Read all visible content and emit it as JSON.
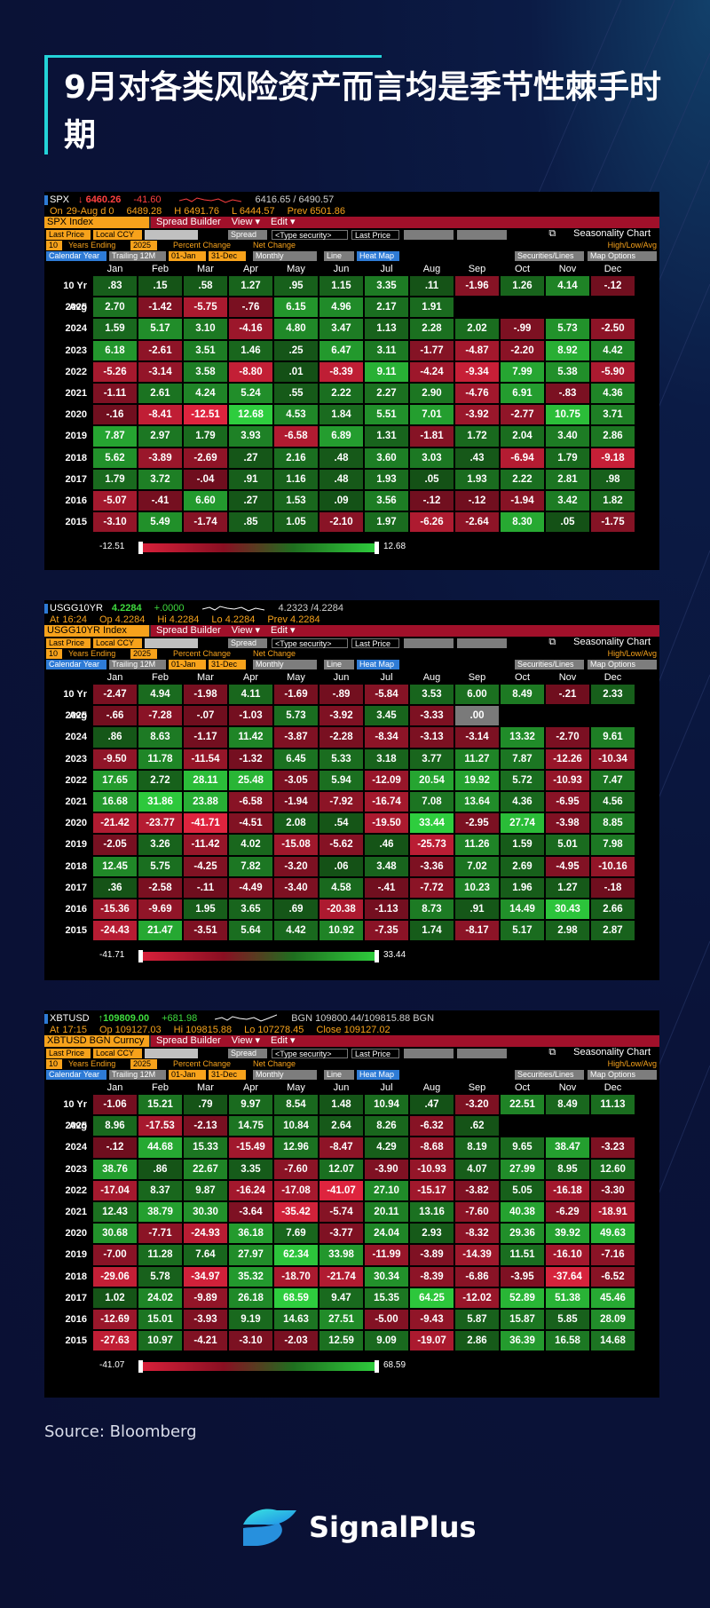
{
  "title": "9月对各类风险资产而言均是季节性棘手时期",
  "source": "Source: Bloomberg",
  "brand": "SignalPlus",
  "colors": {
    "accent": "#23d3d8",
    "bg": "#0a1339",
    "pos_strong": "#2ecb3c",
    "pos": "#1e7a1e",
    "neg": "#a1102a",
    "neg_strong": "#d8203a"
  },
  "months": [
    "Jan",
    "Feb",
    "Mar",
    "Apr",
    "May",
    "Jun",
    "Jul",
    "Aug",
    "Sep",
    "Oct",
    "Nov",
    "Dec"
  ],
  "panels": [
    {
      "ticker": "SPX",
      "line1": {
        "price": "↓ 6460.26",
        "change": "-41.60",
        "bidask": "6416.65 / 6490.57"
      },
      "line2": {
        "tag": "On",
        "date": "29-Aug d 0",
        "open": "6489.28",
        "high": "H 6491.76",
        "low": "L 6444.57",
        "prev": "Prev 6501.86"
      },
      "security": "SPX Index",
      "menu1": "Spread Builder",
      "menu2": "View ▾",
      "menu3": "Edit ▾",
      "chart_name": "Seasonality Chart",
      "ctl": {
        "price": "Last Price",
        "ccy": "Local CCY",
        "spread": "Spread",
        "type_sec": "<Type security>",
        "last": "Last Price",
        "years": "10",
        "years_lbl": "Years Ending",
        "year_end": "2025",
        "pct": "Percent Change",
        "net": "Net Change",
        "hla": "High/Low/Avg",
        "cal": "Calendar Year",
        "trail": "Trailing 12M",
        "from": "01-Jan",
        "to": "31-Dec",
        "freq": "Monthly",
        "line": "Line",
        "heat": "Heat Map",
        "sec_lines": "Securities/Lines",
        "map_opt": "Map Options"
      },
      "legend_min": "-12.51",
      "legend_max": "12.68",
      "chart_data": {
        "type": "heatmap",
        "x": [
          "Jan",
          "Feb",
          "Mar",
          "Apr",
          "May",
          "Jun",
          "Jul",
          "Aug",
          "Sep",
          "Oct",
          "Nov",
          "Dec"
        ],
        "y": [
          "10 Yr Avg",
          "2025",
          "2024",
          "2023",
          "2022",
          "2021",
          "2020",
          "2019",
          "2018",
          "2017",
          "2016",
          "2015"
        ],
        "values": [
          [
            ".83",
            ".15",
            ".58",
            "1.27",
            ".95",
            "1.15",
            "3.35",
            ".11",
            "-1.96",
            "1.26",
            "4.14",
            "-.12"
          ],
          [
            "2.70",
            "-1.42",
            "-5.75",
            "-.76",
            "6.15",
            "4.96",
            "2.17",
            "1.91",
            "",
            "",
            "",
            ""
          ],
          [
            "1.59",
            "5.17",
            "3.10",
            "-4.16",
            "4.80",
            "3.47",
            "1.13",
            "2.28",
            "2.02",
            "-.99",
            "5.73",
            "-2.50"
          ],
          [
            "6.18",
            "-2.61",
            "3.51",
            "1.46",
            ".25",
            "6.47",
            "3.11",
            "-1.77",
            "-4.87",
            "-2.20",
            "8.92",
            "4.42"
          ],
          [
            "-5.26",
            "-3.14",
            "3.58",
            "-8.80",
            ".01",
            "-8.39",
            "9.11",
            "-4.24",
            "-9.34",
            "7.99",
            "5.38",
            "-5.90"
          ],
          [
            "-1.11",
            "2.61",
            "4.24",
            "5.24",
            ".55",
            "2.22",
            "2.27",
            "2.90",
            "-4.76",
            "6.91",
            "-.83",
            "4.36"
          ],
          [
            "-.16",
            "-8.41",
            "-12.51",
            "12.68",
            "4.53",
            "1.84",
            "5.51",
            "7.01",
            "-3.92",
            "-2.77",
            "10.75",
            "3.71"
          ],
          [
            "7.87",
            "2.97",
            "1.79",
            "3.93",
            "-6.58",
            "6.89",
            "1.31",
            "-1.81",
            "1.72",
            "2.04",
            "3.40",
            "2.86"
          ],
          [
            "5.62",
            "-3.89",
            "-2.69",
            ".27",
            "2.16",
            ".48",
            "3.60",
            "3.03",
            ".43",
            "-6.94",
            "1.79",
            "-9.18"
          ],
          [
            "1.79",
            "3.72",
            "-.04",
            ".91",
            "1.16",
            ".48",
            "1.93",
            ".05",
            "1.93",
            "2.22",
            "2.81",
            ".98"
          ],
          [
            "-5.07",
            "-.41",
            "6.60",
            ".27",
            "1.53",
            ".09",
            "3.56",
            "-.12",
            "-.12",
            "-1.94",
            "3.42",
            "1.82"
          ],
          [
            "-3.10",
            "5.49",
            "-1.74",
            ".85",
            "1.05",
            "-2.10",
            "1.97",
            "-6.26",
            "-2.64",
            "8.30",
            ".05",
            "-1.75"
          ]
        ],
        "range": [
          -12.51,
          12.68
        ]
      }
    },
    {
      "ticker": "USGG10YR",
      "line1": {
        "price": "4.2284",
        "change": "+.0000",
        "bidask": "4.2323 /4.2284"
      },
      "line2": {
        "tag": "At",
        "date": "16:24",
        "open": "Op 4.2284",
        "high": "Hi 4.2284",
        "low": "Lo 4.2284",
        "prev": "Prev 4.2284"
      },
      "security": "USGG10YR Index",
      "menu1": "Spread Builder",
      "menu2": "View ▾",
      "menu3": "Edit ▾",
      "chart_name": "Seasonality Chart",
      "ctl": {
        "price": "Last Price",
        "ccy": "Local CCY",
        "spread": "Spread",
        "type_sec": "<Type security>",
        "last": "Last Price",
        "years": "10",
        "years_lbl": "Years Ending",
        "year_end": "2025",
        "pct": "Percent Change",
        "net": "Net Change",
        "hla": "High/Low/Avg",
        "cal": "Calendar Year",
        "trail": "Trailing 12M",
        "from": "01-Jan",
        "to": "31-Dec",
        "freq": "Monthly",
        "line": "Line",
        "heat": "Heat Map",
        "sec_lines": "Securities/Lines",
        "map_opt": "Map Options"
      },
      "legend_min": "-41.71",
      "legend_max": "33.44",
      "chart_data": {
        "type": "heatmap",
        "x": [
          "Jan",
          "Feb",
          "Mar",
          "Apr",
          "May",
          "Jun",
          "Jul",
          "Aug",
          "Sep",
          "Oct",
          "Nov",
          "Dec"
        ],
        "y": [
          "10 Yr Avg",
          "2025",
          "2024",
          "2023",
          "2022",
          "2021",
          "2020",
          "2019",
          "2018",
          "2017",
          "2016",
          "2015"
        ],
        "values": [
          [
            "-2.47",
            "4.94",
            "-1.98",
            "4.11",
            "-1.69",
            "-.89",
            "-5.84",
            "3.53",
            "6.00",
            "8.49",
            "-.21",
            "2.33"
          ],
          [
            "-.66",
            "-7.28",
            "-.07",
            "-1.03",
            "5.73",
            "-3.92",
            "3.45",
            "-3.33",
            ".00",
            "",
            "",
            ""
          ],
          [
            ".86",
            "8.63",
            "-1.17",
            "11.42",
            "-3.87",
            "-2.28",
            "-8.34",
            "-3.13",
            "-3.14",
            "13.32",
            "-2.70",
            "9.61"
          ],
          [
            "-9.50",
            "11.78",
            "-11.54",
            "-1.32",
            "6.45",
            "5.33",
            "3.18",
            "3.77",
            "11.27",
            "7.87",
            "-12.26",
            "-10.34"
          ],
          [
            "17.65",
            "2.72",
            "28.11",
            "25.48",
            "-3.05",
            "5.94",
            "-12.09",
            "20.54",
            "19.92",
            "5.72",
            "-10.93",
            "7.47"
          ],
          [
            "16.68",
            "31.86",
            "23.88",
            "-6.58",
            "-1.94",
            "-7.92",
            "-16.74",
            "7.08",
            "13.64",
            "4.36",
            "-6.95",
            "4.56"
          ],
          [
            "-21.42",
            "-23.77",
            "-41.71",
            "-4.51",
            "2.08",
            ".54",
            "-19.50",
            "33.44",
            "-2.95",
            "27.74",
            "-3.98",
            "8.85"
          ],
          [
            "-2.05",
            "3.26",
            "-11.42",
            "4.02",
            "-15.08",
            "-5.62",
            ".46",
            "-25.73",
            "11.26",
            "1.59",
            "5.01",
            "7.98"
          ],
          [
            "12.45",
            "5.75",
            "-4.25",
            "7.82",
            "-3.20",
            ".06",
            "3.48",
            "-3.36",
            "7.02",
            "2.69",
            "-4.95",
            "-10.16"
          ],
          [
            ".36",
            "-2.58",
            "-.11",
            "-4.49",
            "-3.40",
            "4.58",
            "-.41",
            "-7.72",
            "10.23",
            "1.96",
            "1.27",
            "-.18"
          ],
          [
            "-15.36",
            "-9.69",
            "1.95",
            "3.65",
            ".69",
            "-20.38",
            "-1.13",
            "8.73",
            ".91",
            "14.49",
            "30.43",
            "2.66"
          ],
          [
            "-24.43",
            "21.47",
            "-3.51",
            "5.64",
            "4.42",
            "10.92",
            "-7.35",
            "1.74",
            "-8.17",
            "5.17",
            "2.98",
            "2.87"
          ]
        ],
        "range": [
          -41.71,
          33.44
        ]
      }
    },
    {
      "ticker": "XBTUSD",
      "line1": {
        "price": "↑109809.00",
        "change": "+681.98",
        "bidask": "BGN 109800.44/109815.88 BGN"
      },
      "line2": {
        "tag": "At",
        "date": "17:15",
        "open": "Op 109127.03",
        "high": "Hi 109815.88",
        "low": "Lo 107278.45",
        "prev": "Close 109127.02"
      },
      "security": "XBTUSD BGN Curncy",
      "menu1": "Spread Builder",
      "menu2": "View ▾",
      "menu3": "Edit ▾",
      "chart_name": "Seasonality Chart",
      "ctl": {
        "price": "Last Price",
        "ccy": "Local CCY",
        "spread": "Spread",
        "type_sec": "<Type security>",
        "last": "Last Price",
        "years": "10",
        "years_lbl": "Years Ending",
        "year_end": "2025",
        "pct": "Percent Change",
        "net": "Net Change",
        "hla": "High/Low/Avg",
        "cal": "Calendar Year",
        "trail": "Trailing 12M",
        "from": "01-Jan",
        "to": "31-Dec",
        "freq": "Monthly",
        "line": "Line",
        "heat": "Heat Map",
        "sec_lines": "Securities/Lines",
        "map_opt": "Map Options"
      },
      "legend_min": "-41.07",
      "legend_max": "68.59",
      "chart_data": {
        "type": "heatmap",
        "x": [
          "Jan",
          "Feb",
          "Mar",
          "Apr",
          "May",
          "Jun",
          "Jul",
          "Aug",
          "Sep",
          "Oct",
          "Nov",
          "Dec"
        ],
        "y": [
          "10 Yr Avg",
          "2025",
          "2024",
          "2023",
          "2022",
          "2021",
          "2020",
          "2019",
          "2018",
          "2017",
          "2016",
          "2015"
        ],
        "values": [
          [
            "-1.06",
            "15.21",
            ".79",
            "9.97",
            "8.54",
            "1.48",
            "10.94",
            ".47",
            "-3.20",
            "22.51",
            "8.49",
            "11.13"
          ],
          [
            "8.96",
            "-17.53",
            "-2.13",
            "14.75",
            "10.84",
            "2.64",
            "8.26",
            "-6.32",
            ".62",
            "",
            "",
            ""
          ],
          [
            "-.12",
            "44.68",
            "15.33",
            "-15.49",
            "12.96",
            "-8.47",
            "4.29",
            "-8.68",
            "8.19",
            "9.65",
            "38.47",
            "-3.23"
          ],
          [
            "38.76",
            ".86",
            "22.67",
            "3.35",
            "-7.60",
            "12.07",
            "-3.90",
            "-10.93",
            "4.07",
            "27.99",
            "8.95",
            "12.60"
          ],
          [
            "-17.04",
            "8.37",
            "9.87",
            "-16.24",
            "-17.08",
            "-41.07",
            "27.10",
            "-15.17",
            "-3.82",
            "5.05",
            "-16.18",
            "-3.30"
          ],
          [
            "12.43",
            "38.79",
            "30.30",
            "-3.64",
            "-35.42",
            "-5.74",
            "20.11",
            "13.16",
            "-7.60",
            "40.38",
            "-6.29",
            "-18.91"
          ],
          [
            "30.68",
            "-7.71",
            "-24.93",
            "36.18",
            "7.69",
            "-3.77",
            "24.04",
            "2.93",
            "-8.32",
            "29.36",
            "39.92",
            "49.63"
          ],
          [
            "-7.00",
            "11.28",
            "7.64",
            "27.97",
            "62.34",
            "33.98",
            "-11.99",
            "-3.89",
            "-14.39",
            "11.51",
            "-16.10",
            "-7.16"
          ],
          [
            "-29.06",
            "5.78",
            "-34.97",
            "35.32",
            "-18.70",
            "-21.74",
            "30.34",
            "-8.39",
            "-6.86",
            "-3.95",
            "-37.64",
            "-6.52"
          ],
          [
            "1.02",
            "24.02",
            "-9.89",
            "26.18",
            "68.59",
            "9.47",
            "15.35",
            "64.25",
            "-12.02",
            "52.89",
            "51.38",
            "45.46"
          ],
          [
            "-12.69",
            "15.01",
            "-3.93",
            "9.19",
            "14.63",
            "27.51",
            "-5.00",
            "-9.43",
            "5.87",
            "15.87",
            "5.85",
            "28.09"
          ],
          [
            "-27.63",
            "10.97",
            "-4.21",
            "-3.10",
            "-2.03",
            "12.59",
            "9.09",
            "-19.07",
            "2.86",
            "36.39",
            "16.58",
            "14.68"
          ]
        ],
        "range": [
          -41.07,
          68.59
        ]
      }
    }
  ]
}
